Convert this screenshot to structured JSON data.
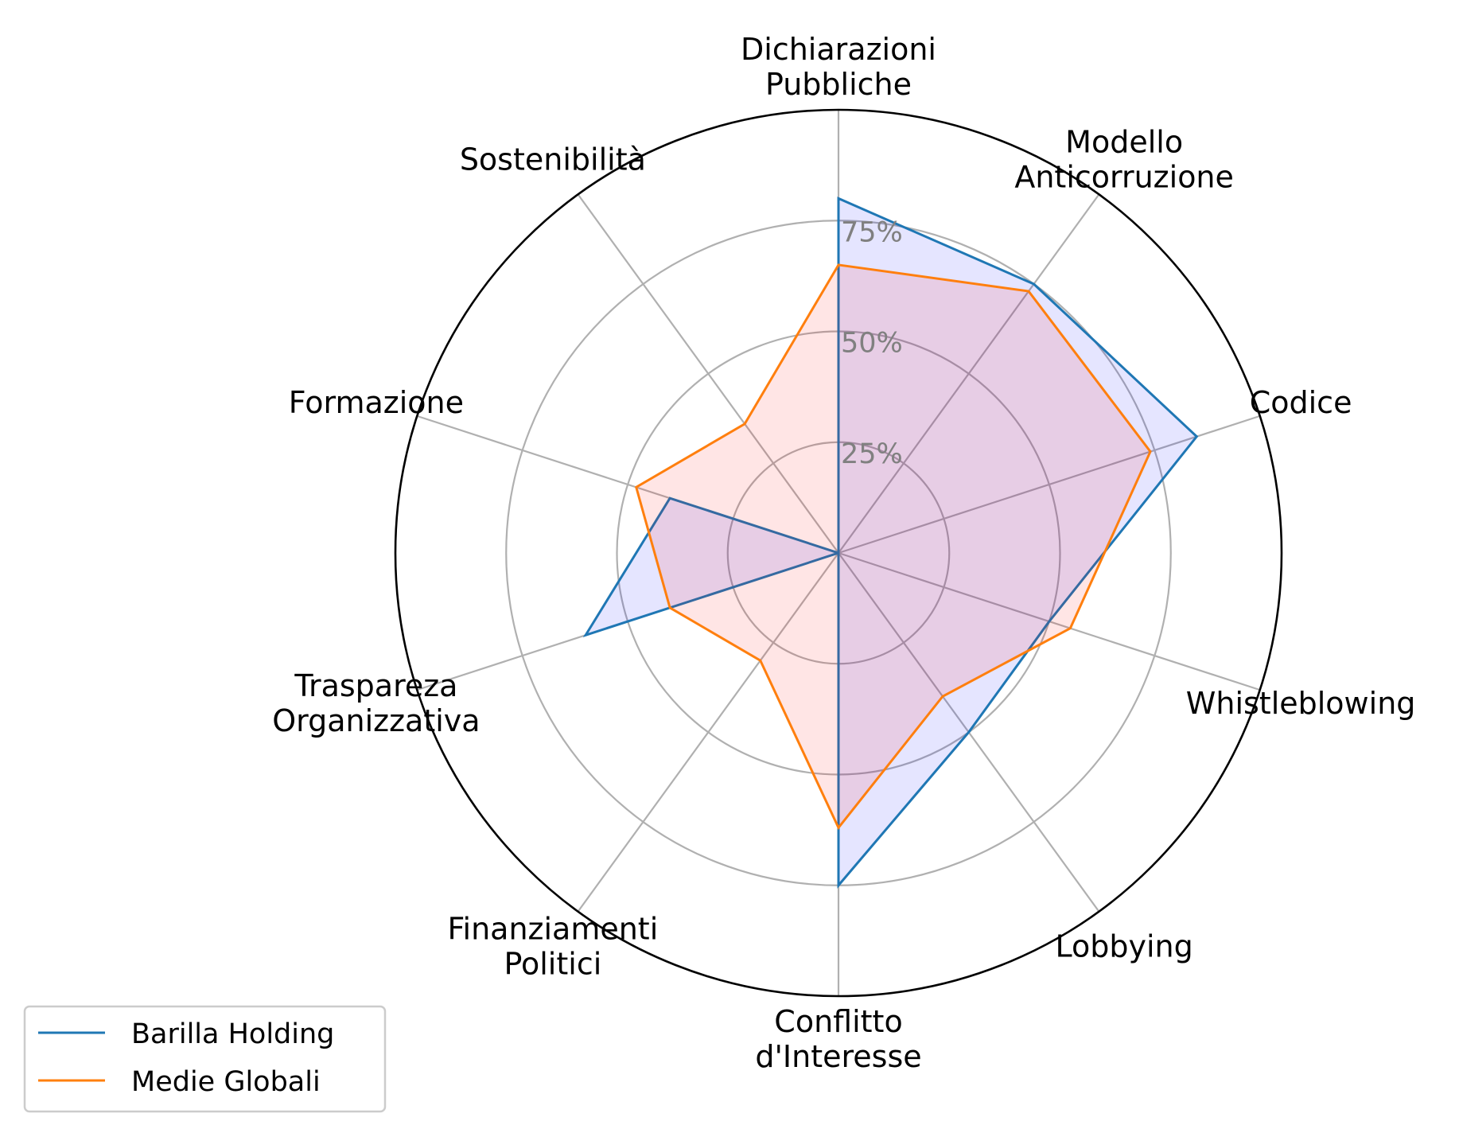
{
  "chart_data": {
    "type": "radar",
    "categories": [
      [
        "Dichiarazioni",
        "Pubbliche"
      ],
      [
        "Modello",
        "Anticorruzione"
      ],
      [
        "Codice"
      ],
      [
        "Whistleblowing"
      ],
      [
        "Lobbying"
      ],
      [
        "Conflitto",
        "d'Interesse"
      ],
      [
        "Finanziamenti",
        "Politici"
      ],
      [
        "Traspareza",
        "Organizzativa"
      ],
      [
        "Formazione"
      ],
      [
        "Sostenibilità"
      ]
    ],
    "radial_ticks": [
      25,
      50,
      75
    ],
    "radial_tick_labels": [
      "25%",
      "50%",
      "75%"
    ],
    "rlim": [
      0,
      100
    ],
    "grid": true,
    "legend_position": "lower-left",
    "series": [
      {
        "name": "Barilla Holding",
        "values": [
          80,
          75,
          85,
          50,
          50,
          75,
          0,
          60,
          40,
          0
        ],
        "line_color": "#1f77b4",
        "fill_color": "#0000ff",
        "fill_opacity": 0.1
      },
      {
        "name": "Medie Globali",
        "values": [
          65,
          73,
          74,
          55,
          40,
          62,
          30,
          40,
          48,
          36
        ],
        "line_color": "#ff7f0e",
        "fill_color": "#ff0000",
        "fill_opacity": 0.1
      }
    ]
  }
}
